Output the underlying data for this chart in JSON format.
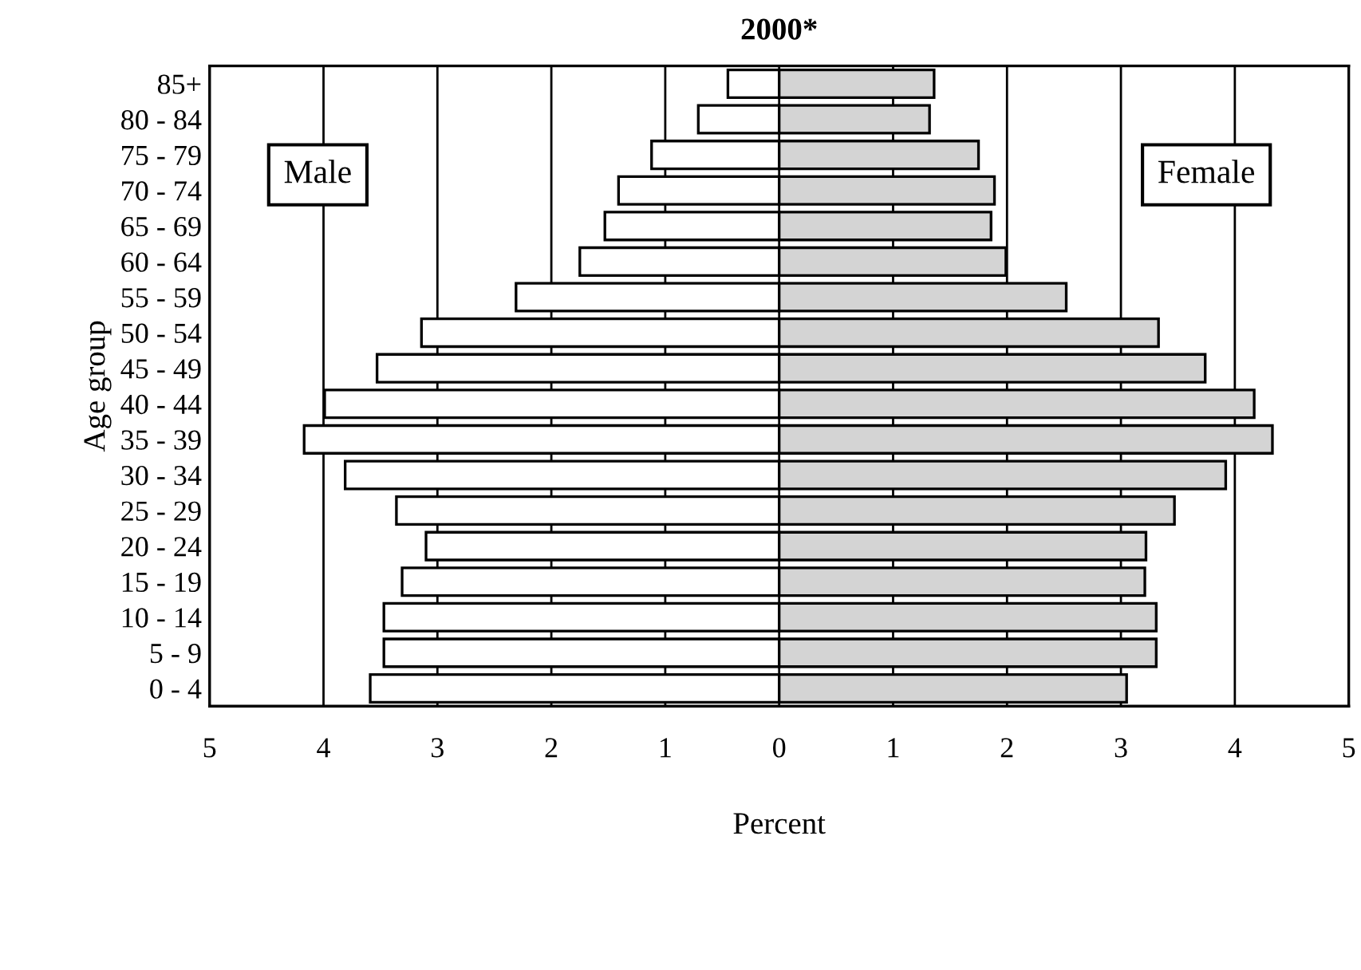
{
  "chart_data": {
    "type": "bar",
    "orientation": "horizontal",
    "title": "2000*",
    "xlabel": "Percent",
    "ylabel": "Age group",
    "categories": [
      "85+",
      "80 - 84",
      "75 - 79",
      "70 - 74",
      "65 - 69",
      "60 - 64",
      "55 - 59",
      "50 - 54",
      "45 - 49",
      "40 - 44",
      "35 - 39",
      "30 - 34",
      "25 - 29",
      "20 - 24",
      "15 - 19",
      "10 - 14",
      "5 - 9",
      "0 - 4"
    ],
    "series": [
      {
        "name": "Male",
        "color": "#ffffff",
        "values": [
          -0.45,
          -0.71,
          -1.12,
          -1.41,
          -1.53,
          -1.75,
          -2.31,
          -3.14,
          -3.53,
          -3.99,
          -4.17,
          -3.81,
          -3.36,
          -3.1,
          -3.31,
          -3.47,
          -3.47,
          -3.59
        ]
      },
      {
        "name": "Female",
        "color": "#d4d4d4",
        "values": [
          1.36,
          1.32,
          1.75,
          1.89,
          1.86,
          1.99,
          2.52,
          3.33,
          3.74,
          4.17,
          4.33,
          3.92,
          3.47,
          3.22,
          3.21,
          3.31,
          3.31,
          3.05
        ]
      }
    ],
    "xlim": [
      -5,
      5
    ],
    "xticks": [
      {
        "value": -5,
        "label": "5"
      },
      {
        "value": -4,
        "label": "4"
      },
      {
        "value": -3,
        "label": "3"
      },
      {
        "value": -2,
        "label": "2"
      },
      {
        "value": -1,
        "label": "1"
      },
      0,
      1,
      2,
      3,
      4,
      5
    ],
    "stacked": true,
    "grid": "x",
    "legend": false
  }
}
